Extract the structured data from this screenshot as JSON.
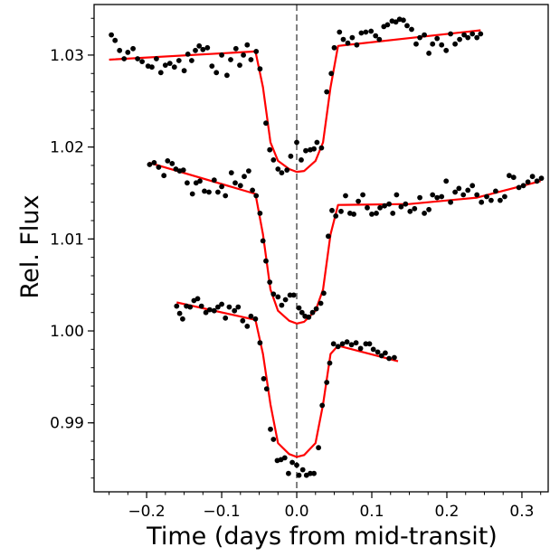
{
  "chart_data": {
    "type": "scatter",
    "xlabel": "Time (days from mid-transit)",
    "ylabel": "Rel. Flux",
    "xlim": [
      -0.27,
      0.335
    ],
    "ylim": [
      0.9825,
      1.0355
    ],
    "grid": false,
    "legend": "none",
    "colors": {
      "points": "#000000",
      "model": "#ff0000",
      "midline": "#808080"
    },
    "x_ticks": [
      {
        "value": -0.2,
        "label": "−0.2"
      },
      {
        "value": -0.1,
        "label": "−0.1"
      },
      {
        "value": 0.0,
        "label": "0.0"
      },
      {
        "value": 0.1,
        "label": "0.1"
      },
      {
        "value": 0.2,
        "label": "0.2"
      },
      {
        "value": 0.3,
        "label": "0.3"
      }
    ],
    "y_ticks": [
      {
        "value": 0.99,
        "label": "0.99"
      },
      {
        "value": 1.0,
        "label": "1.00"
      },
      {
        "value": 1.01,
        "label": "1.01"
      },
      {
        "value": 1.02,
        "label": "1.02"
      },
      {
        "value": 1.03,
        "label": "1.03"
      }
    ],
    "vline_x": 0.0,
    "series": [
      {
        "model": [
          [
            -0.25,
            1.0295
          ],
          [
            -0.055,
            1.0304
          ],
          [
            -0.045,
            1.0265
          ],
          [
            -0.035,
            1.0205
          ],
          [
            -0.025,
            1.0185
          ],
          [
            -0.01,
            1.0176
          ],
          [
            0.0,
            1.0173
          ],
          [
            0.01,
            1.0174
          ],
          [
            0.025,
            1.0185
          ],
          [
            0.035,
            1.0205
          ],
          [
            0.045,
            1.0265
          ],
          [
            0.055,
            1.031
          ],
          [
            0.245,
            1.0327
          ]
        ],
        "points": [
          [
            -0.247,
            1.0322
          ],
          [
            -0.242,
            1.0316
          ],
          [
            -0.236,
            1.0305
          ],
          [
            -0.23,
            1.0296
          ],
          [
            -0.225,
            1.0303
          ],
          [
            -0.218,
            1.0307
          ],
          [
            -0.212,
            1.0296
          ],
          [
            -0.206,
            1.0293
          ],
          [
            -0.198,
            1.0288
          ],
          [
            -0.193,
            1.0287
          ],
          [
            -0.187,
            1.0296
          ],
          [
            -0.181,
            1.0281
          ],
          [
            -0.175,
            1.0289
          ],
          [
            -0.169,
            1.0291
          ],
          [
            -0.163,
            1.0287
          ],
          [
            -0.157,
            1.0294
          ],
          [
            -0.15,
            1.0283
          ],
          [
            -0.145,
            1.0301
          ],
          [
            -0.14,
            1.0294
          ],
          [
            -0.135,
            1.0305
          ],
          [
            -0.13,
            1.031
          ],
          [
            -0.125,
            1.0306
          ],
          [
            -0.119,
            1.0308
          ],
          [
            -0.113,
            1.0288
          ],
          [
            -0.107,
            1.0281
          ],
          [
            -0.1,
            1.03
          ],
          [
            -0.093,
            1.0278
          ],
          [
            -0.088,
            1.0295
          ],
          [
            -0.081,
            1.0307
          ],
          [
            -0.076,
            1.0289
          ],
          [
            -0.071,
            1.03
          ],
          [
            -0.066,
            1.0311
          ],
          [
            -0.061,
            1.0295
          ],
          [
            -0.054,
            1.0304
          ],
          [
            -0.049,
            1.0285
          ],
          [
            -0.041,
            1.0226
          ],
          [
            -0.036,
            1.0197
          ],
          [
            -0.031,
            1.0186
          ],
          [
            -0.025,
            1.0176
          ],
          [
            -0.02,
            1.0172
          ],
          [
            -0.013,
            1.0175
          ],
          [
            -0.008,
            1.019
          ],
          [
            0.0,
            1.0205
          ],
          [
            0.006,
            1.0186
          ],
          [
            0.012,
            1.0196
          ],
          [
            0.018,
            1.0197
          ],
          [
            0.023,
            1.0198
          ],
          [
            0.027,
            1.0205
          ],
          [
            0.033,
            1.0199
          ],
          [
            0.04,
            1.026
          ],
          [
            0.046,
            1.028
          ],
          [
            0.05,
            1.0308
          ],
          [
            0.057,
            1.0325
          ],
          [
            0.062,
            1.0317
          ],
          [
            0.068,
            1.0313
          ],
          [
            0.074,
            1.0319
          ],
          [
            0.08,
            1.0311
          ],
          [
            0.086,
            1.0324
          ],
          [
            0.092,
            1.0325
          ],
          [
            0.099,
            1.0326
          ],
          [
            0.105,
            1.0321
          ],
          [
            0.11,
            1.0317
          ],
          [
            0.116,
            1.0331
          ],
          [
            0.121,
            1.0333
          ],
          [
            0.127,
            1.0337
          ],
          [
            0.132,
            1.0336
          ],
          [
            0.137,
            1.0339
          ],
          [
            0.142,
            1.0338
          ],
          [
            0.147,
            1.0332
          ],
          [
            0.153,
            1.0328
          ],
          [
            0.159,
            1.0312
          ],
          [
            0.164,
            1.0319
          ],
          [
            0.17,
            1.0322
          ],
          [
            0.176,
            1.0302
          ],
          [
            0.181,
            1.0312
          ],
          [
            0.187,
            1.0318
          ],
          [
            0.193,
            1.0311
          ],
          [
            0.199,
            1.0305
          ],
          [
            0.205,
            1.0323
          ],
          [
            0.211,
            1.0312
          ],
          [
            0.217,
            1.0317
          ],
          [
            0.223,
            1.0322
          ],
          [
            0.228,
            1.0319
          ],
          [
            0.234,
            1.0323
          ],
          [
            0.24,
            1.0319
          ],
          [
            0.245,
            1.0323
          ]
        ]
      },
      {
        "model": [
          [
            -0.197,
            1.0183
          ],
          [
            -0.055,
            1.0149
          ],
          [
            -0.045,
            1.0105
          ],
          [
            -0.035,
            1.0045
          ],
          [
            -0.025,
            1.0022
          ],
          [
            -0.01,
            1.0011
          ],
          [
            0.0,
            1.0008
          ],
          [
            0.01,
            1.001
          ],
          [
            0.025,
            1.0022
          ],
          [
            0.035,
            1.0045
          ],
          [
            0.045,
            1.0105
          ],
          [
            0.055,
            1.0137
          ],
          [
            0.15,
            1.0138
          ],
          [
            0.24,
            1.0145
          ],
          [
            0.325,
            1.0163
          ]
        ],
        "points": [
          [
            -0.196,
            1.0181
          ],
          [
            -0.19,
            1.0183
          ],
          [
            -0.184,
            1.0178
          ],
          [
            -0.177,
            1.0169
          ],
          [
            -0.172,
            1.0185
          ],
          [
            -0.166,
            1.0182
          ],
          [
            -0.161,
            1.0176
          ],
          [
            -0.156,
            1.0174
          ],
          [
            -0.151,
            1.0175
          ],
          [
            -0.146,
            1.0161
          ],
          [
            -0.139,
            1.0149
          ],
          [
            -0.134,
            1.0161
          ],
          [
            -0.129,
            1.0163
          ],
          [
            -0.123,
            1.0152
          ],
          [
            -0.117,
            1.0151
          ],
          [
            -0.11,
            1.0164
          ],
          [
            -0.105,
            1.0151
          ],
          [
            -0.1,
            1.0157
          ],
          [
            -0.095,
            1.0147
          ],
          [
            -0.087,
            1.0172
          ],
          [
            -0.082,
            1.0161
          ],
          [
            -0.075,
            1.0158
          ],
          [
            -0.07,
            1.0168
          ],
          [
            -0.064,
            1.0174
          ],
          [
            -0.059,
            1.0153
          ],
          [
            -0.054,
            1.0147
          ],
          [
            -0.049,
            1.0128
          ],
          [
            -0.045,
            1.0098
          ],
          [
            -0.041,
            1.0076
          ],
          [
            -0.036,
            1.0053
          ],
          [
            -0.031,
            1.004
          ],
          [
            -0.025,
            1.0037
          ],
          [
            -0.02,
            1.0028
          ],
          [
            -0.015,
            1.0034
          ],
          [
            -0.009,
            1.0039
          ],
          [
            -0.004,
            1.0039
          ],
          [
            0.003,
            1.0025
          ],
          [
            0.007,
            1.002
          ],
          [
            0.011,
            1.0016
          ],
          [
            0.016,
            1.0015
          ],
          [
            0.021,
            1.002
          ],
          [
            0.026,
            1.0024
          ],
          [
            0.032,
            1.003
          ],
          [
            0.036,
            1.0041
          ],
          [
            0.042,
            1.0103
          ],
          [
            0.047,
            1.0131
          ],
          [
            0.052,
            1.0125
          ],
          [
            0.059,
            1.013
          ],
          [
            0.065,
            1.0147
          ],
          [
            0.071,
            1.0128
          ],
          [
            0.076,
            1.0127
          ],
          [
            0.082,
            1.0141
          ],
          [
            0.088,
            1.0148
          ],
          [
            0.094,
            1.0134
          ],
          [
            0.1,
            1.0127
          ],
          [
            0.106,
            1.0128
          ],
          [
            0.111,
            1.0134
          ],
          [
            0.117,
            1.0136
          ],
          [
            0.123,
            1.0138
          ],
          [
            0.128,
            1.0128
          ],
          [
            0.133,
            1.0148
          ],
          [
            0.139,
            1.0135
          ],
          [
            0.145,
            1.0138
          ],
          [
            0.151,
            1.013
          ],
          [
            0.157,
            1.0133
          ],
          [
            0.164,
            1.0145
          ],
          [
            0.17,
            1.0128
          ],
          [
            0.176,
            1.0132
          ],
          [
            0.181,
            1.0148
          ],
          [
            0.187,
            1.0145
          ],
          [
            0.193,
            1.0146
          ],
          [
            0.199,
            1.0163
          ],
          [
            0.205,
            1.014
          ],
          [
            0.211,
            1.0151
          ],
          [
            0.216,
            1.0155
          ],
          [
            0.222,
            1.0148
          ],
          [
            0.228,
            1.0153
          ],
          [
            0.234,
            1.0158
          ],
          [
            0.24,
            1.0148
          ],
          [
            0.246,
            1.014
          ],
          [
            0.253,
            1.0146
          ],
          [
            0.259,
            1.0142
          ],
          [
            0.265,
            1.0152
          ],
          [
            0.271,
            1.0142
          ],
          [
            0.277,
            1.0146
          ],
          [
            0.283,
            1.0169
          ],
          [
            0.289,
            1.0167
          ],
          [
            0.296,
            1.0156
          ],
          [
            0.302,
            1.0158
          ],
          [
            0.308,
            1.0162
          ],
          [
            0.314,
            1.0168
          ],
          [
            0.32,
            1.0163
          ],
          [
            0.326,
            1.0166
          ]
        ]
      },
      {
        "model": [
          [
            -0.16,
            1.0031
          ],
          [
            -0.055,
            1.0012
          ],
          [
            -0.045,
            0.9975
          ],
          [
            -0.035,
            0.992
          ],
          [
            -0.025,
            0.9878
          ],
          [
            -0.01,
            0.9866
          ],
          [
            0.0,
            0.9863
          ],
          [
            0.01,
            0.9865
          ],
          [
            0.025,
            0.9878
          ],
          [
            0.035,
            0.992
          ],
          [
            0.045,
            0.9975
          ],
          [
            0.055,
            0.9984
          ],
          [
            0.135,
            0.9967
          ]
        ],
        "points": [
          [
            -0.16,
            1.0027
          ],
          [
            -0.156,
            1.0019
          ],
          [
            -0.152,
            1.0013
          ],
          [
            -0.147,
            1.0027
          ],
          [
            -0.142,
            1.0026
          ],
          [
            -0.137,
            1.0033
          ],
          [
            -0.132,
            1.0035
          ],
          [
            -0.127,
            1.0027
          ],
          [
            -0.121,
            1.002
          ],
          [
            -0.116,
            1.0023
          ],
          [
            -0.11,
            1.0022
          ],
          [
            -0.105,
            1.0026
          ],
          [
            -0.1,
            1.0029
          ],
          [
            -0.095,
            1.0014
          ],
          [
            -0.09,
            1.0026
          ],
          [
            -0.083,
            1.0022
          ],
          [
            -0.078,
            1.0026
          ],
          [
            -0.072,
            1.0011
          ],
          [
            -0.066,
            1.0005
          ],
          [
            -0.061,
            1.0016
          ],
          [
            -0.055,
            1.0013
          ],
          [
            -0.049,
            0.9987
          ],
          [
            -0.044,
            0.9948
          ],
          [
            -0.04,
            0.9937
          ],
          [
            -0.035,
            0.9893
          ],
          [
            -0.031,
            0.9882
          ],
          [
            -0.026,
            0.9859
          ],
          [
            -0.021,
            0.986
          ],
          [
            -0.016,
            0.9862
          ],
          [
            -0.011,
            0.9845
          ],
          [
            -0.006,
            0.9857
          ],
          [
            0.0,
            0.9854
          ],
          [
            0.003,
            0.9843
          ],
          [
            0.008,
            0.9849
          ],
          [
            0.013,
            0.9843
          ],
          [
            0.018,
            0.9845
          ],
          [
            0.023,
            0.9845
          ],
          [
            0.029,
            0.9873
          ],
          [
            0.034,
            0.9919
          ],
          [
            0.04,
            0.9944
          ],
          [
            0.044,
            0.9965
          ],
          [
            0.049,
            0.9986
          ],
          [
            0.055,
            0.9983
          ],
          [
            0.061,
            0.9986
          ],
          [
            0.067,
            0.9988
          ],
          [
            0.073,
            0.9985
          ],
          [
            0.079,
            0.9987
          ],
          [
            0.085,
            0.9981
          ],
          [
            0.092,
            0.9986
          ],
          [
            0.097,
            0.9986
          ],
          [
            0.102,
            0.998
          ],
          [
            0.108,
            0.9977
          ],
          [
            0.113,
            0.9973
          ],
          [
            0.118,
            0.9976
          ],
          [
            0.123,
            0.997
          ],
          [
            0.13,
            0.9971
          ]
        ]
      }
    ]
  }
}
